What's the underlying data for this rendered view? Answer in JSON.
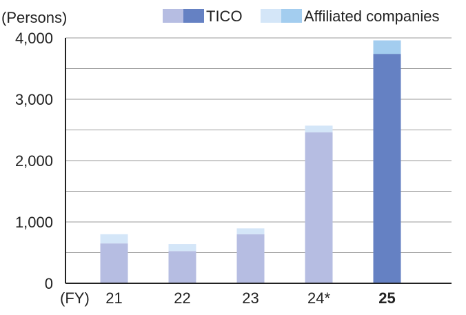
{
  "chart_data": {
    "type": "bar",
    "stacked": true,
    "unit_label": "(Persons)",
    "x_axis_label": "(FY)",
    "categories": [
      "21",
      "22",
      "23",
      "24*",
      "25"
    ],
    "highlight_category": "25",
    "series": [
      {
        "name": "TICO",
        "values": [
          650,
          525,
          800,
          2460,
          3740
        ]
      },
      {
        "name": "Affiliated companies",
        "values": [
          150,
          115,
          95,
          110,
          220
        ]
      }
    ],
    "ylim": [
      0,
      4000
    ],
    "yticks": [
      0,
      1000,
      2000,
      3000,
      4000
    ],
    "ytick_labels": [
      "0",
      "1,000",
      "2,000",
      "3,000",
      "4,000"
    ],
    "grid": true,
    "legend_position": "top-right",
    "colors": {
      "tico_past": "#b6bde2",
      "tico_highlight": "#6581c3",
      "affiliated_past": "#d4e6f8",
      "affiliated_highlight": "#a3cdef",
      "grid": "#9a9a9a",
      "axis": "#222222",
      "text": "#222222"
    }
  }
}
